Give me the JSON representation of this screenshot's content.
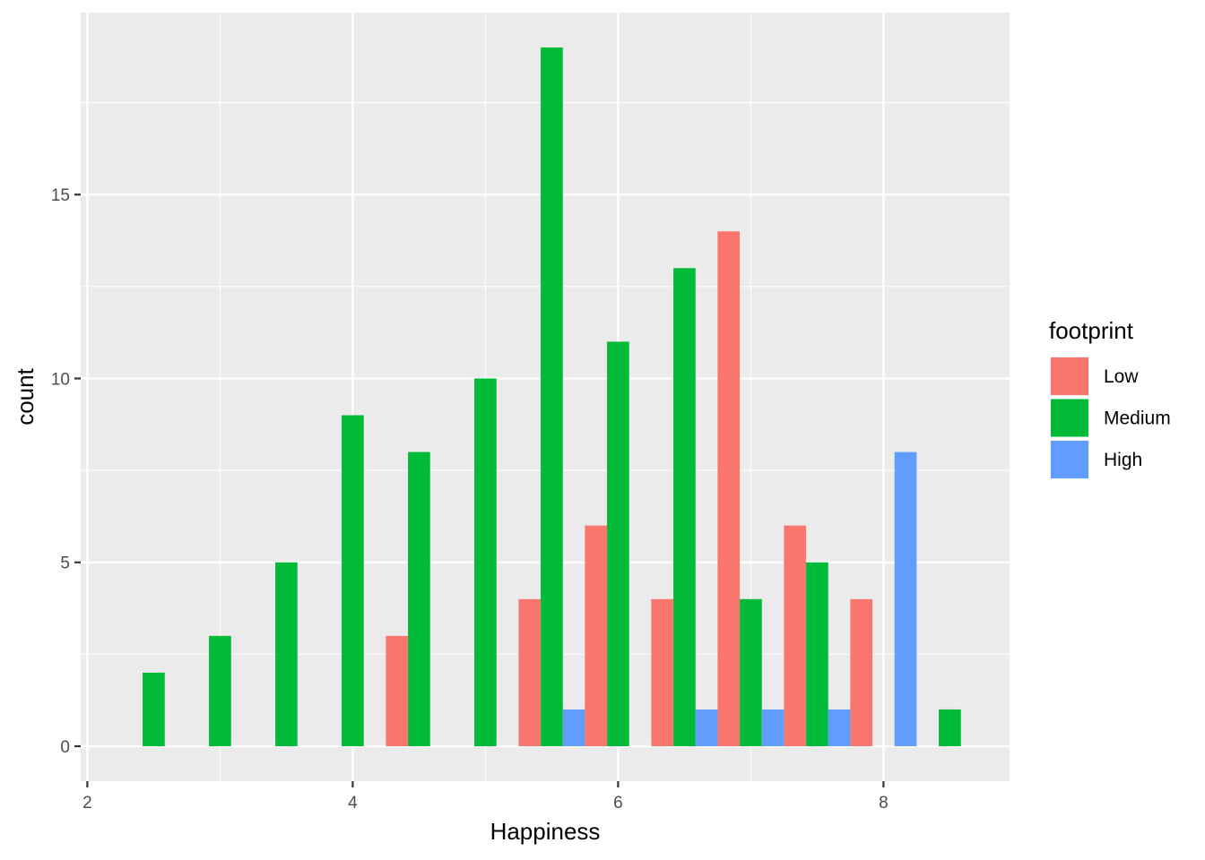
{
  "chart_data": {
    "type": "bar",
    "xlabel": "Happiness",
    "ylabel": "count",
    "xlim": [
      1.95,
      8.95
    ],
    "ylim": [
      -0.95,
      19.95
    ],
    "x_ticks": [
      2,
      4,
      6,
      8
    ],
    "y_ticks": [
      0,
      5,
      10,
      15
    ],
    "grid": true,
    "bin_width": 0.5,
    "legend": {
      "title": "footprint",
      "position": "right",
      "entries": [
        "Low",
        "Medium",
        "High"
      ]
    },
    "colors": {
      "Low": "#F8766D",
      "Medium": "#00BA38",
      "High": "#619CFF",
      "panel": "#EBEBEB",
      "grid": "#FFFFFF"
    },
    "bins": [
      2.5,
      3,
      3.5,
      4,
      4.5,
      5,
      5.5,
      6,
      6.5,
      7,
      7.5,
      8,
      8.5
    ],
    "series": [
      {
        "name": "Low",
        "values": [
          0,
          0,
          0,
          0,
          3,
          0,
          4,
          6,
          4,
          14,
          6,
          4,
          0
        ]
      },
      {
        "name": "Medium",
        "values": [
          2,
          3,
          5,
          9,
          8,
          10,
          19,
          11,
          13,
          4,
          5,
          0,
          1
        ]
      },
      {
        "name": "High",
        "values": [
          0,
          0,
          0,
          0,
          0,
          0,
          1,
          0,
          1,
          1,
          1,
          8,
          0
        ]
      }
    ]
  }
}
